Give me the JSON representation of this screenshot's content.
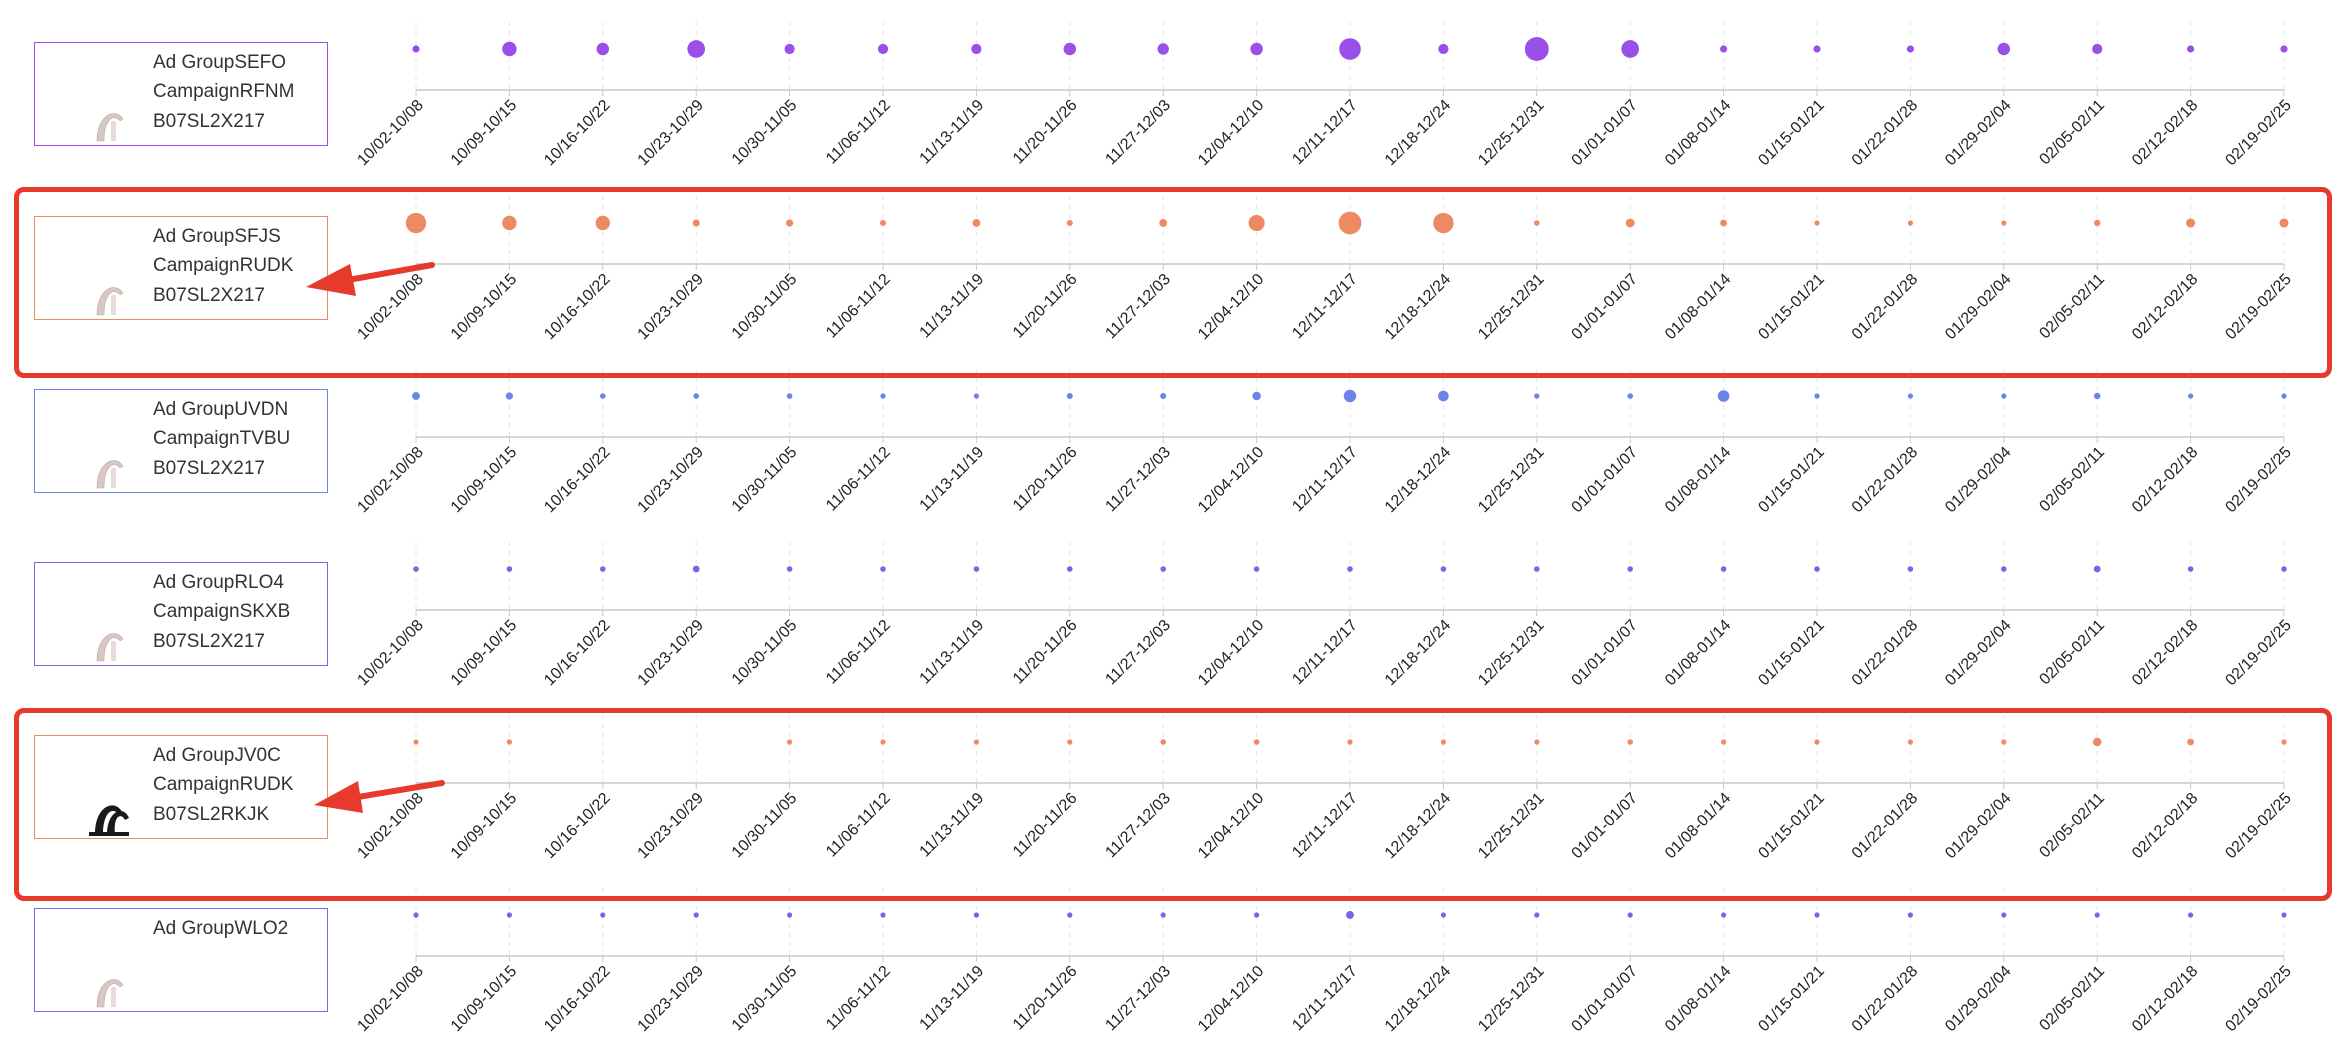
{
  "colors": {
    "orange": "#ee8a63",
    "blue": "#6c84e8",
    "purple": "#9a4fe8",
    "violet": "#7b62e8",
    "highlight": "#e53a2c",
    "axis": "#c8c8c8",
    "gridline": "#e4e4e4"
  },
  "chart_data": {
    "type": "scatter",
    "categories": [
      "10/02-10/08",
      "10/09-10/15",
      "10/16-10/22",
      "10/23-10/29",
      "10/30-11/05",
      "11/06-11/12",
      "11/13-11/19",
      "11/20-11/26",
      "11/27-12/03",
      "12/04-12/10",
      "12/11-12/17",
      "12/18-12/24",
      "12/25-12/31",
      "01/01-01/07",
      "01/08-01/14",
      "01/15-01/21",
      "01/22-01/28",
      "01/29-02/04",
      "02/05-02/11",
      "02/12-02/18",
      "02/19-02/25"
    ],
    "series": [
      {
        "ad_group": "Ad GroupSEFO",
        "campaign": "CampaignRFNM",
        "asin": "B07SL2X217",
        "color": "#9a4fe8",
        "thumb": "pale-faucet-icon",
        "highlighted": false,
        "values": [
          1,
          4,
          3,
          6,
          2,
          2,
          2,
          3,
          2.5,
          3,
          9,
          2,
          11,
          6,
          1,
          1,
          1,
          3,
          2,
          1,
          1
        ]
      },
      {
        "ad_group": "Ad GroupSFJS",
        "campaign": "CampaignRUDK",
        "asin": "B07SL2X217",
        "color": "#ee8a63",
        "thumb": "pale-faucet-icon",
        "highlighted": true,
        "values": [
          8,
          4,
          4,
          1,
          1,
          0.7,
          1.2,
          0.7,
          1.2,
          5,
          10,
          8,
          0.6,
          1.5,
          0.9,
          0.5,
          0.4,
          0.5,
          0.8,
          1.6,
          1.6
        ]
      },
      {
        "ad_group": "Ad GroupUVDN",
        "campaign": "CampaignTVBU",
        "asin": "B07SL2X217",
        "color": "#6c84e8",
        "thumb": "pale-faucet-icon",
        "highlighted": false,
        "values": [
          1.2,
          1,
          0.6,
          0.6,
          0.6,
          0.5,
          0.5,
          0.7,
          0.7,
          1.4,
          3,
          2.2,
          0.5,
          0.6,
          2.6,
          0.5,
          0.5,
          0.5,
          0.8,
          0.5,
          0.5
        ]
      },
      {
        "ad_group": "Ad GroupRLO4",
        "campaign": "CampaignSKXB",
        "asin": "B07SL2X217",
        "color": "#7b62e8",
        "thumb": "pale-faucet-icon",
        "highlighted": false,
        "values": [
          0.6,
          0.6,
          0.6,
          0.9,
          0.6,
          0.6,
          0.6,
          0.6,
          0.6,
          0.6,
          0.6,
          0.6,
          0.6,
          0.6,
          0.6,
          0.6,
          0.6,
          0.6,
          0.9,
          0.6,
          0.6
        ]
      },
      {
        "ad_group": "Ad GroupJV0C",
        "campaign": "CampaignRUDK",
        "asin": "B07SL2RKJK",
        "color": "#ee8a63",
        "thumb": "black-faucet-icon",
        "highlighted": true,
        "values": [
          0.3,
          0.3,
          0,
          0,
          0.4,
          0.4,
          0.4,
          0.4,
          0.6,
          0.6,
          0.5,
          0.5,
          0.4,
          0.6,
          0.5,
          0.4,
          0.4,
          0.4,
          1.4,
          0.9,
          0.4
        ]
      },
      {
        "ad_group": "Ad GroupWLO2",
        "campaign": "",
        "asin": "",
        "color": "#7b62e8",
        "thumb": "pale-faucet-icon",
        "highlighted": false,
        "values": [
          0.4,
          0.4,
          0.4,
          0.4,
          0.4,
          0.4,
          0.4,
          0.4,
          0.4,
          0.4,
          1.2,
          0.4,
          0.4,
          0.4,
          0.4,
          0.4,
          0.4,
          0.4,
          0.4,
          0.4,
          0.4
        ]
      }
    ],
    "grid": true,
    "xlabel": "",
    "ylabel": ""
  }
}
